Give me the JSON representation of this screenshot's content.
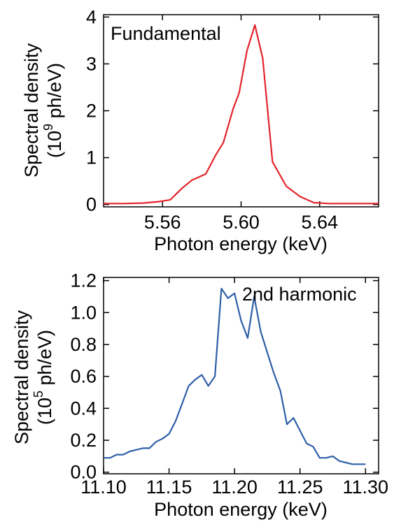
{
  "chart_data": [
    {
      "type": "line",
      "annotation": "Fundamental",
      "xlabel": "Photon energy (keV)",
      "ylabel_line1": "Spectral density",
      "ylabel_line2_prefix": "(10",
      "ylabel_exponent": "9",
      "ylabel_line2_suffix": " ph/eV)",
      "xlim": [
        5.53,
        5.67
      ],
      "ylim": [
        -0.05,
        4.05
      ],
      "x_ticks": [
        5.56,
        5.6,
        5.64
      ],
      "x_tick_labels": [
        "5.56",
        "5.60",
        "5.64"
      ],
      "y_ticks": [
        0,
        1,
        2,
        3,
        4
      ],
      "y_tick_labels": [
        "0",
        "1",
        "2",
        "3",
        "4"
      ],
      "grid": false,
      "color": "#e3242b",
      "series": [
        {
          "x": [
            5.53,
            5.54,
            5.55,
            5.558,
            5.564,
            5.57,
            5.575,
            5.582,
            5.587,
            5.591,
            5.596,
            5.599,
            5.603,
            5.607,
            5.611,
            5.616,
            5.623,
            5.63,
            5.637,
            5.645,
            5.655,
            5.67
          ],
          "y": [
            0.02,
            0.02,
            0.03,
            0.06,
            0.1,
            0.35,
            0.52,
            0.65,
            1.05,
            1.32,
            2.05,
            2.38,
            3.28,
            3.83,
            3.12,
            0.91,
            0.39,
            0.17,
            0.04,
            0.02,
            0.02,
            0.02
          ]
        }
      ]
    },
    {
      "type": "line",
      "annotation": "2nd harmonic",
      "xlabel": "Photon energy (keV)",
      "ylabel_line1": "Spectral density",
      "ylabel_line2_prefix": "(10",
      "ylabel_exponent": "5",
      "ylabel_line2_suffix": " ph/eV)",
      "xlim": [
        11.1,
        11.31
      ],
      "ylim": [
        -0.01,
        1.22
      ],
      "x_ticks": [
        11.1,
        11.15,
        11.2,
        11.25,
        11.3
      ],
      "x_tick_labels": [
        "11.10",
        "11.15",
        "11.20",
        "11.25",
        "11.30"
      ],
      "y_ticks": [
        0.0,
        0.2,
        0.4,
        0.6,
        0.8,
        1.0,
        1.2
      ],
      "y_tick_labels": [
        "0.0",
        "0.2",
        "0.4",
        "0.6",
        "0.8",
        "1.0",
        "1.2"
      ],
      "grid": false,
      "color": "#2f5fa8",
      "series": [
        {
          "x": [
            11.1,
            11.105,
            11.11,
            11.115,
            11.12,
            11.125,
            11.13,
            11.135,
            11.14,
            11.145,
            11.15,
            11.155,
            11.16,
            11.165,
            11.17,
            11.175,
            11.18,
            11.185,
            11.19,
            11.195,
            11.2,
            11.205,
            11.21,
            11.215,
            11.22,
            11.225,
            11.23,
            11.235,
            11.24,
            11.245,
            11.25,
            11.255,
            11.26,
            11.265,
            11.27,
            11.275,
            11.28,
            11.285,
            11.29,
            11.3
          ],
          "y": [
            0.09,
            0.09,
            0.11,
            0.11,
            0.13,
            0.14,
            0.15,
            0.15,
            0.19,
            0.21,
            0.24,
            0.32,
            0.43,
            0.54,
            0.58,
            0.61,
            0.54,
            0.6,
            1.15,
            1.09,
            1.12,
            0.95,
            0.84,
            1.1,
            0.88,
            0.75,
            0.62,
            0.51,
            0.3,
            0.34,
            0.26,
            0.18,
            0.16,
            0.09,
            0.09,
            0.1,
            0.07,
            0.06,
            0.05,
            0.05
          ]
        }
      ]
    }
  ]
}
